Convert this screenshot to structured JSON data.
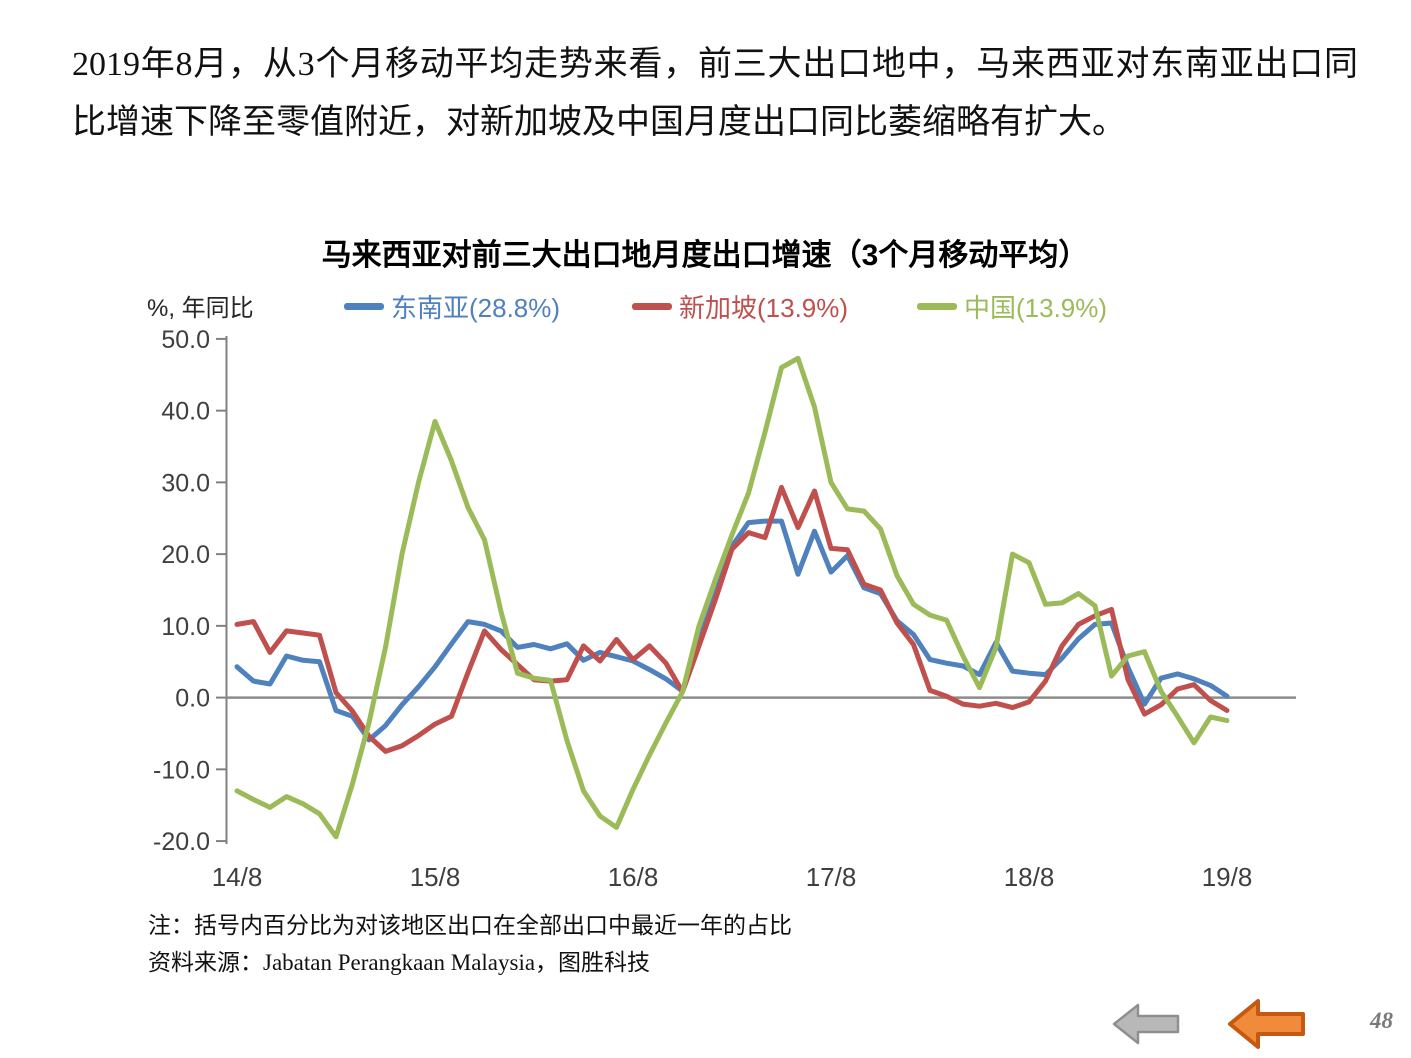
{
  "headline": {
    "text": "2019年8月，从3个月移动平均走势来看，前三大出口地中，马来西亚对东南亚出口同比增速下降至零值附近，对新加坡及中国月度出口同比萎缩略有扩大。"
  },
  "chart": {
    "title": "马来西亚对前三大出口地月度出口增速（3个月移动平均）",
    "unit_label": "%, 年同比"
  },
  "chart_data": {
    "type": "line",
    "title": "马来西亚对前三大出口地月度出口增速（3个月移动平均）",
    "ylabel": "%, 年同比",
    "ylim": [
      -20,
      50
    ],
    "yticks": [
      50,
      40,
      30,
      20,
      10,
      0,
      -10,
      -20
    ],
    "grid": "zero-line-only",
    "legend_position": "top",
    "x_description": "61 monthly points from 2014-08 to 2019-08",
    "x_tick_labels": [
      "14/8",
      "15/8",
      "16/8",
      "17/8",
      "18/8",
      "19/8"
    ],
    "x_tick_positions": [
      0,
      12,
      24,
      36,
      48,
      60
    ],
    "series": [
      {
        "name": "东南亚",
        "label": "东南亚(28.8%)",
        "color": "#4F81BD",
        "values": [
          4.3,
          2.3,
          1.9,
          5.8,
          5.2,
          5.0,
          -1.8,
          -2.6,
          -5.9,
          -3.9,
          -1.0,
          1.5,
          4.3,
          7.5,
          10.6,
          10.2,
          9.3,
          7.0,
          7.4,
          6.8,
          7.5,
          5.2,
          6.3,
          5.7,
          5.1,
          3.9,
          2.6,
          0.9,
          7.9,
          14.4,
          21.1,
          24.4,
          24.6,
          24.6,
          17.2,
          23.2,
          17.5,
          19.8,
          15.3,
          14.5,
          10.7,
          8.8,
          5.3,
          4.8,
          4.4,
          3.2,
          7.7,
          3.7,
          3.4,
          3.2,
          5.5,
          8.2,
          10.2,
          10.4,
          4.2,
          -0.9,
          2.7,
          3.3,
          2.6,
          1.7,
          0.2
        ]
      },
      {
        "name": "新加坡",
        "label": "新加坡(13.9%)",
        "color": "#C0504D",
        "values": [
          10.2,
          10.6,
          6.3,
          9.3,
          9.0,
          8.7,
          0.7,
          -1.9,
          -5.4,
          -7.5,
          -6.7,
          -5.3,
          -3.7,
          -2.6,
          3.5,
          9.3,
          6.7,
          4.6,
          2.5,
          2.3,
          2.5,
          7.2,
          5.1,
          8.1,
          5.3,
          7.2,
          4.8,
          0.8,
          7.2,
          13.7,
          20.7,
          23.0,
          22.3,
          29.3,
          23.7,
          28.8,
          20.8,
          20.6,
          15.8,
          15.0,
          10.4,
          7.4,
          1.0,
          0.2,
          -0.9,
          -1.2,
          -0.8,
          -1.4,
          -0.6,
          2.3,
          7.2,
          10.2,
          11.4,
          12.3,
          2.5,
          -2.3,
          -1.0,
          1.2,
          1.8,
          -0.4,
          -1.8
        ]
      },
      {
        "name": "中国",
        "label": "中国(13.9%)",
        "color": "#9BBB59",
        "values": [
          -13.0,
          -14.2,
          -15.3,
          -13.8,
          -14.8,
          -16.2,
          -19.4,
          -12.0,
          -3.5,
          7.0,
          20.0,
          30.0,
          38.5,
          33.0,
          26.5,
          22.0,
          12.0,
          3.4,
          2.7,
          2.4,
          -6.0,
          -13.0,
          -16.5,
          -18.1,
          -12.8,
          -8.0,
          -3.5,
          0.8,
          10.0,
          16.5,
          22.7,
          28.5,
          37.0,
          46.0,
          47.3,
          40.5,
          30.0,
          26.3,
          26.0,
          23.5,
          17.0,
          13.0,
          11.5,
          10.8,
          5.8,
          1.4,
          7.0,
          20.0,
          18.8,
          13.0,
          13.2,
          14.5,
          12.8,
          3.0,
          5.8,
          6.4,
          0.9,
          -2.6,
          -6.3,
          -2.7,
          -3.2
        ]
      }
    ]
  },
  "notes": {
    "line1": "注：括号内百分比为对该地区出口在全部出口中最近一年的占比",
    "line2": "资料来源：Jabatan Perangkaan Malaysia，图胜科技"
  },
  "nav": {
    "back": {
      "fill": "#b8b8b8",
      "stroke": "#8f8f8f"
    },
    "return": {
      "fill": "#F08B3C",
      "stroke": "#C65911"
    }
  },
  "footer": {
    "page_number": "48"
  }
}
